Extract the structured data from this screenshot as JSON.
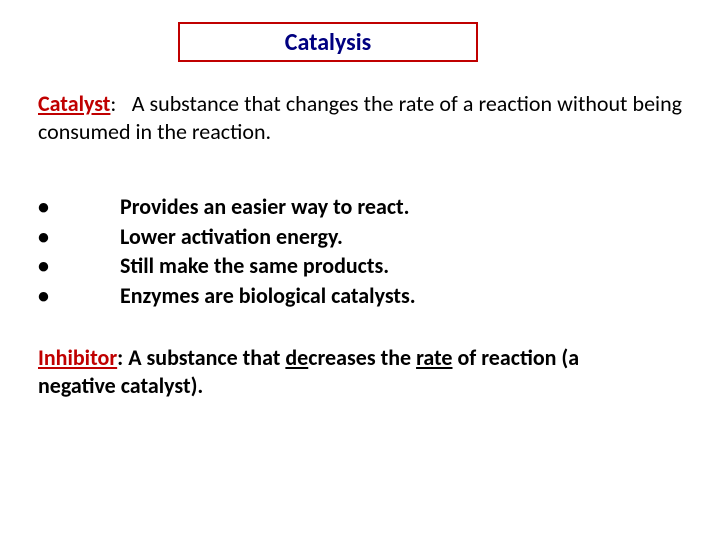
{
  "title": "Catalysis",
  "colors": {
    "title_border": "#c00000",
    "title_text": "#000080",
    "term_color": "#c00000",
    "body_text": "#000000",
    "background": "#ffffff"
  },
  "typography": {
    "title_fontsize": 24,
    "body_fontsize": 22,
    "font_family": "Calibri"
  },
  "catalyst": {
    "term": "Catalyst",
    "colon": ":",
    "definition": "A substance that changes the rate of a reaction without being consumed in the reaction."
  },
  "bullets": [
    "Provides an easier way to react.",
    "Lower activation energy.",
    "Still make the same products.",
    "Enzymes are biological catalysts."
  ],
  "bullet_marker": "•",
  "inhibitor": {
    "term": "Inhibitor",
    "colon": ":",
    "text_before": " A substance that ",
    "underlined1": "de",
    "text_mid": "creases the ",
    "underlined2": "rate",
    "text_after": " of reaction (a negative catalyst)."
  }
}
